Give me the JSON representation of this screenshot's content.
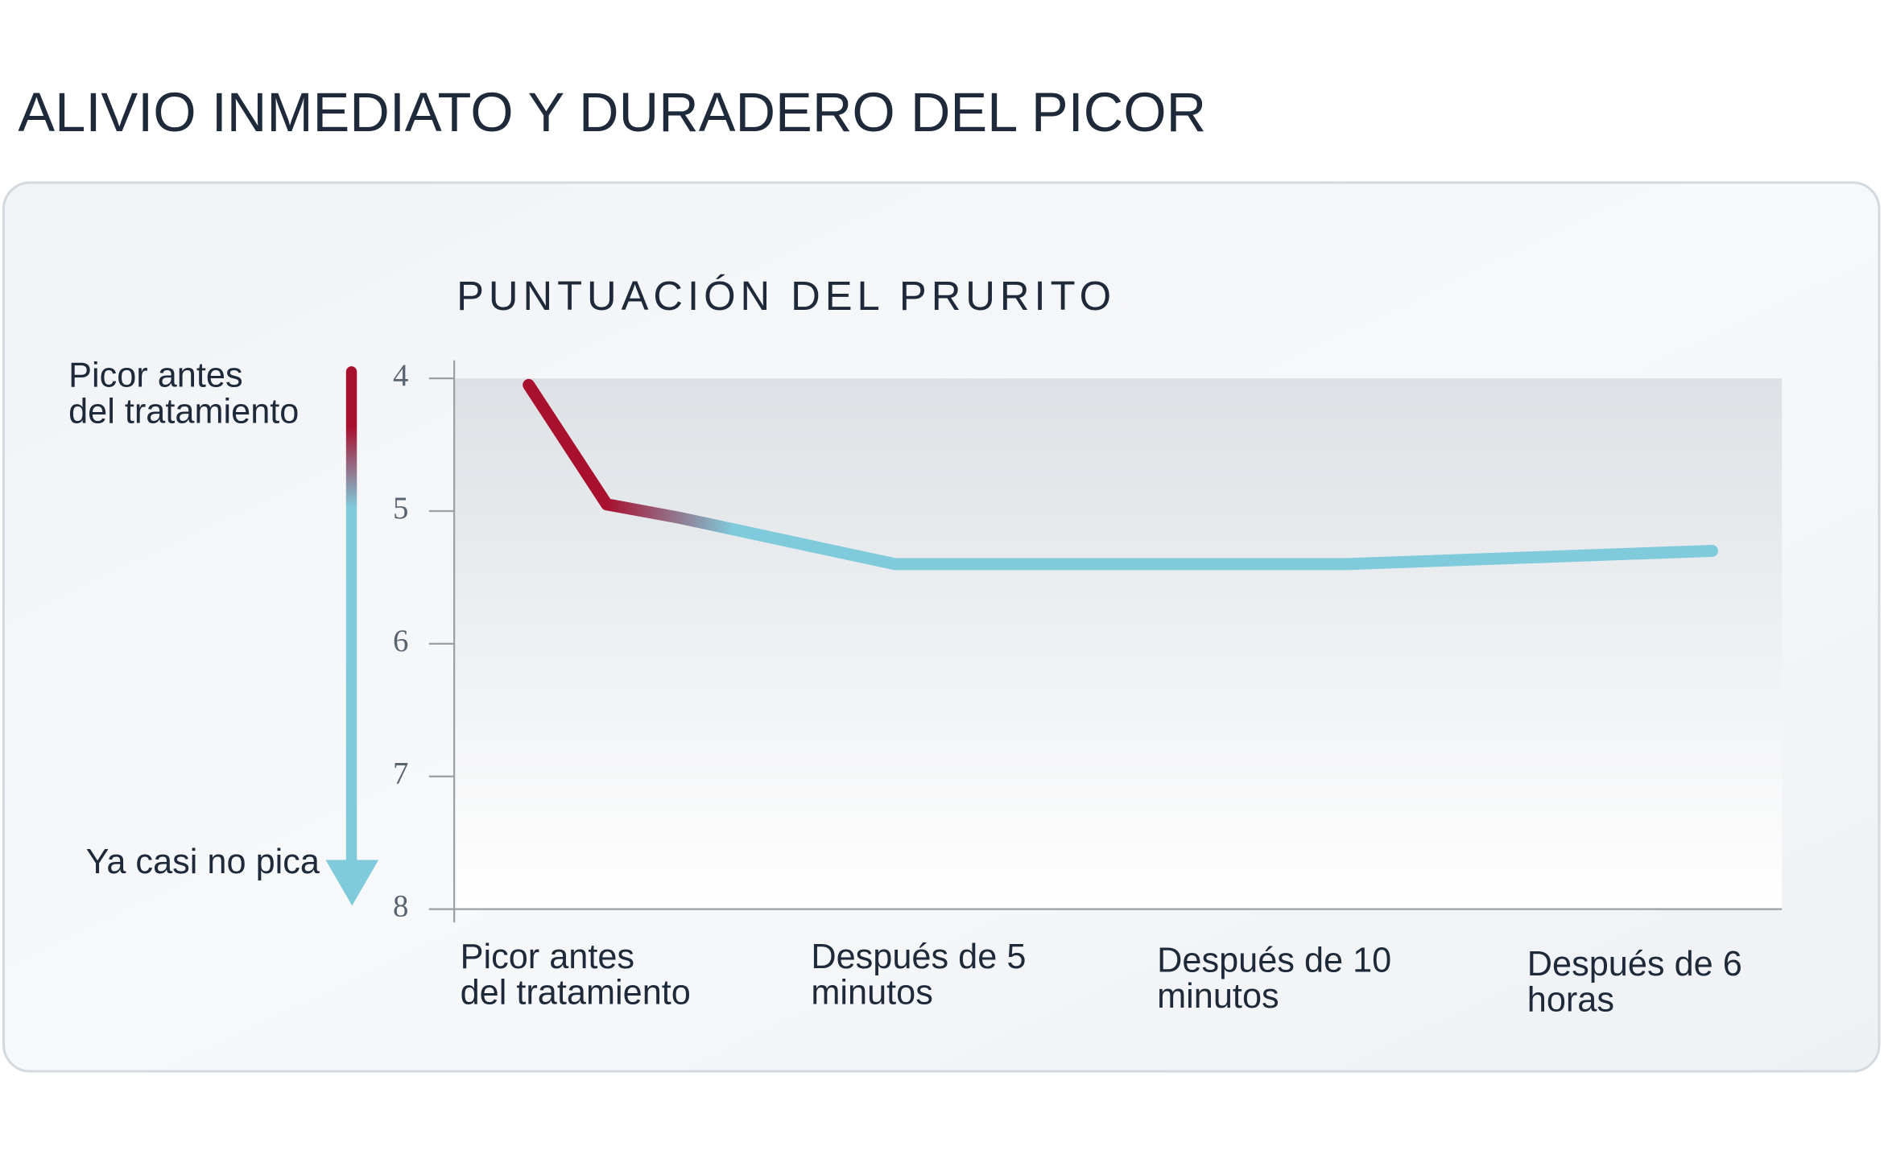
{
  "title": "ALIVIO INMEDIATO Y DURADERO DEL PICOR",
  "chart_data": {
    "type": "line",
    "title": "PUNTUACIÓN DEL PRURITO",
    "categories": [
      "Picor antes\ndel tratamiento",
      null,
      null,
      "Después de 5\nminutos",
      "Después de 10\nminutos",
      "Después de 6\nhoras"
    ],
    "series": [
      {
        "values": [
          4.05,
          4.95,
          5.05,
          5.4,
          5.4,
          5.3
        ],
        "color": [
          "#a8102e",
          "#7fcadb"
        ]
      }
    ],
    "ylim": [
      8,
      4
    ],
    "yticks": [
      4,
      5,
      6,
      7,
      8
    ],
    "annotations": [
      "Picor antes\ndel tratamiento",
      "Ya casi no pica"
    ]
  }
}
